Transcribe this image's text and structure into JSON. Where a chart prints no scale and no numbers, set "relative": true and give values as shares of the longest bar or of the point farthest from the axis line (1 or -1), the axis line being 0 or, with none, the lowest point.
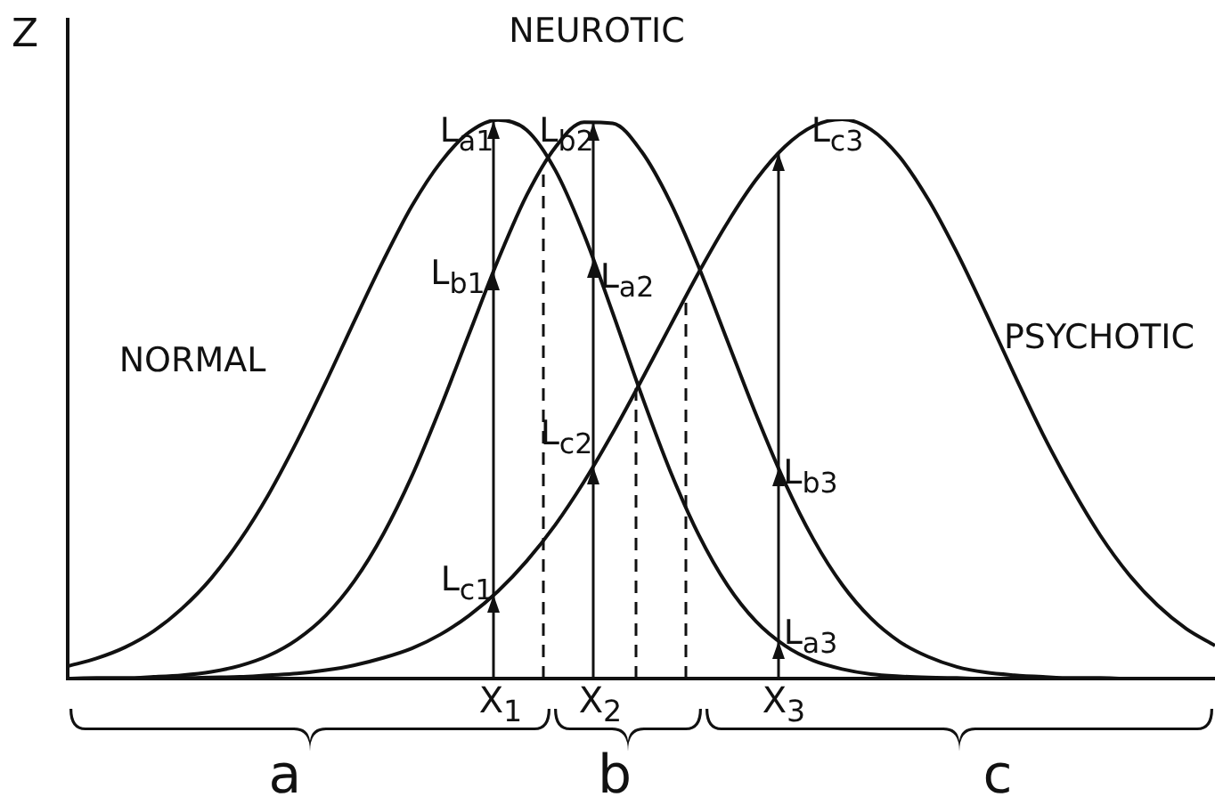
{
  "chart_data": {
    "type": "line",
    "relative": true,
    "ylabel": "Z",
    "marker": "none",
    "line_style": "solid",
    "categories": [
      null,
      null,
      null,
      null,
      null,
      null,
      null,
      null,
      null,
      null,
      null,
      null,
      null,
      null,
      null,
      null,
      null,
      null,
      null,
      null,
      null,
      null,
      null,
      null,
      null,
      null,
      null,
      null,
      null,
      null,
      null,
      null,
      null,
      null,
      null,
      null,
      null,
      null,
      null,
      null,
      null
    ],
    "series": [
      {
        "color": "#111111",
        "values": [
          0.022,
          0.036,
          0.056,
          0.085,
          0.126,
          0.179,
          0.247,
          0.329,
          0.425,
          0.53,
          0.64,
          0.747,
          0.845,
          0.923,
          0.977,
          0.999,
          0.981,
          0.909,
          0.794,
          0.654,
          0.508,
          0.372,
          0.257,
          0.167,
          0.102,
          0.059,
          0.032,
          0.017,
          0.008,
          0.004,
          0.002,
          0.001,
          0,
          0,
          0,
          0,
          0,
          0,
          0,
          0,
          0
        ]
      },
      {
        "color": "#111111",
        "values": [
          0,
          0.001,
          0.001,
          0.003,
          0.006,
          0.012,
          0.023,
          0.041,
          0.07,
          0.113,
          0.175,
          0.258,
          0.362,
          0.485,
          0.617,
          0.748,
          0.864,
          0.95,
          0.995,
          0.993,
          0.943,
          0.853,
          0.736,
          0.604,
          0.472,
          0.351,
          0.249,
          0.168,
          0.108,
          0.066,
          0.039,
          0.021,
          0.011,
          0.006,
          0.003,
          0.001,
          0.001,
          0,
          0,
          0,
          0
        ]
      },
      {
        "color": "#111111",
        "values": [
          0,
          0,
          0,
          0.001,
          0.001,
          0.002,
          0.003,
          0.006,
          0.009,
          0.015,
          0.024,
          0.037,
          0.054,
          0.079,
          0.113,
          0.156,
          0.21,
          0.275,
          0.352,
          0.439,
          0.533,
          0.63,
          0.726,
          0.815,
          0.892,
          0.951,
          0.988,
          1,
          0.982,
          0.933,
          0.857,
          0.762,
          0.655,
          0.544,
          0.437,
          0.341,
          0.256,
          0.186,
          0.131,
          0.089,
          0.059
        ]
      }
    ],
    "annotations": [
      "NEUROTIC",
      "NORMAL",
      "PSYCHOTIC",
      "L$_{a1}$",
      "L$_{b2}$",
      "L$_{c3}$",
      "L$_{b1}$",
      "L$_{a2}$",
      "L$_{c2}$",
      "L$_{b3}$",
      "L$_{c1}$",
      "L$_{a3}$",
      "X$_{1}$",
      "X$_{2}$",
      "X$_{3}$",
      "a",
      "b",
      "c"
    ]
  }
}
